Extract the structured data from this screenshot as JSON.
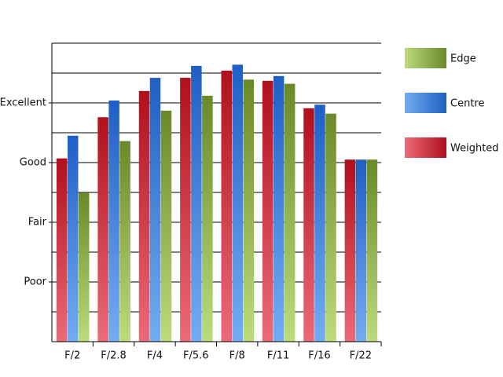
{
  "chart_data": {
    "type": "bar",
    "categories": [
      "F/2",
      "F/2.8",
      "F/4",
      "F/5.6",
      "F/8",
      "F/11",
      "F/16",
      "F/22"
    ],
    "series": [
      {
        "name": "Weighted",
        "color": "#b0101c",
        "light_color": "#ec6a78",
        "values": [
          3.07,
          3.76,
          4.2,
          4.42,
          4.54,
          4.37,
          3.91,
          3.05
        ]
      },
      {
        "name": "Centre",
        "color": "#1f5fc4",
        "light_color": "#74acf2",
        "values": [
          3.45,
          4.04,
          4.42,
          4.62,
          4.64,
          4.45,
          3.97,
          3.05
        ]
      },
      {
        "name": "Edge",
        "color": "#6a8a2a",
        "light_color": "#bcdc7c",
        "values": [
          2.49,
          3.36,
          3.87,
          4.12,
          4.39,
          4.32,
          3.82,
          3.05
        ]
      }
    ],
    "ylim": [
      0,
      5
    ],
    "yticks": [
      {
        "value": 1,
        "label": "Poor"
      },
      {
        "value": 2,
        "label": "Fair"
      },
      {
        "value": 3,
        "label": "Good"
      },
      {
        "value": 4,
        "label": "Excellent"
      }
    ],
    "ygrid": [
      0.5,
      1,
      1.5,
      2,
      2.5,
      3,
      3.5,
      4,
      4.5,
      5
    ],
    "grid": true,
    "legend": "right"
  }
}
